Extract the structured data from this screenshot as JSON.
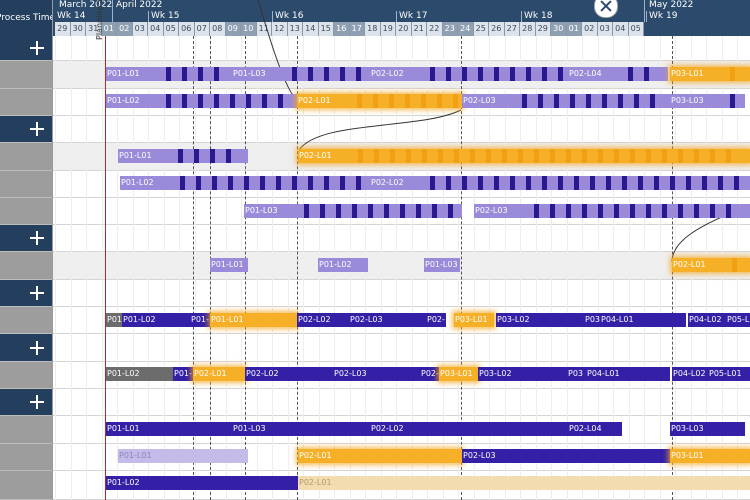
{
  "left_header": {
    "title": "Process Time"
  },
  "timeline": {
    "months": [
      "March 2022",
      "April 2022",
      "May 2022"
    ],
    "weeks": [
      "Wk 14",
      "Wk 15",
      "Wk 16",
      "Wk 17",
      "Wk 18",
      "Wk 19"
    ],
    "days": [
      "29",
      "30",
      "31",
      "01",
      "02",
      "03",
      "04",
      "05",
      "06",
      "07",
      "08",
      "09",
      "10",
      "11",
      "12",
      "13",
      "14",
      "15",
      "16",
      "17",
      "18",
      "19",
      "20",
      "21",
      "22",
      "23",
      "24",
      "25",
      "26",
      "27",
      "28",
      "29",
      "30",
      "01",
      "02",
      "03",
      "04",
      "05"
    ]
  },
  "planning_start": "Planning Start",
  "rows": [
    {
      "bars": [
        "P01-L01",
        "P01-L03",
        "P02-L02",
        "P02-L04",
        "P03-L01"
      ]
    },
    {
      "bars": [
        "P01-L02",
        "P02-L01",
        "P02-L03",
        "P03-L03"
      ]
    },
    {
      "bars": [
        "P01-L01",
        "P02-L01"
      ]
    },
    {
      "bars": [
        "P01-L02",
        "P02-L02"
      ]
    },
    {
      "bars": [
        "P01-L03",
        "P02-L03"
      ]
    },
    {
      "bars": [
        "P01-L01",
        "P01-L02",
        "P01-L03",
        "P02-L01"
      ]
    },
    {
      "bars": [
        "P01",
        "P01-L02",
        "P01-",
        "P01-L01",
        "P02-L02",
        "P02-L03",
        "P02-",
        "P03-L01",
        "P03-L02",
        "P03",
        "P04-L01",
        "P04-L02",
        "P05-L"
      ]
    },
    {
      "bars": [
        "P01-L02",
        "P01-",
        "P02-L01",
        "P02-L02",
        "P02-L03",
        "P02-",
        "P03-L01",
        "P03-L02",
        "P03",
        "P04-L01",
        "P04-L02",
        "P05-L01"
      ]
    },
    {
      "bars": [
        "P01-L01",
        "P01-L03",
        "P02-L02",
        "P02-L04",
        "P03-L03"
      ]
    },
    {
      "bars": [
        "P01-L01",
        "P02-L01",
        "P02-L03",
        "P03-L01"
      ]
    },
    {
      "bars": [
        "P01-L02",
        "P02-L01"
      ]
    }
  ]
}
